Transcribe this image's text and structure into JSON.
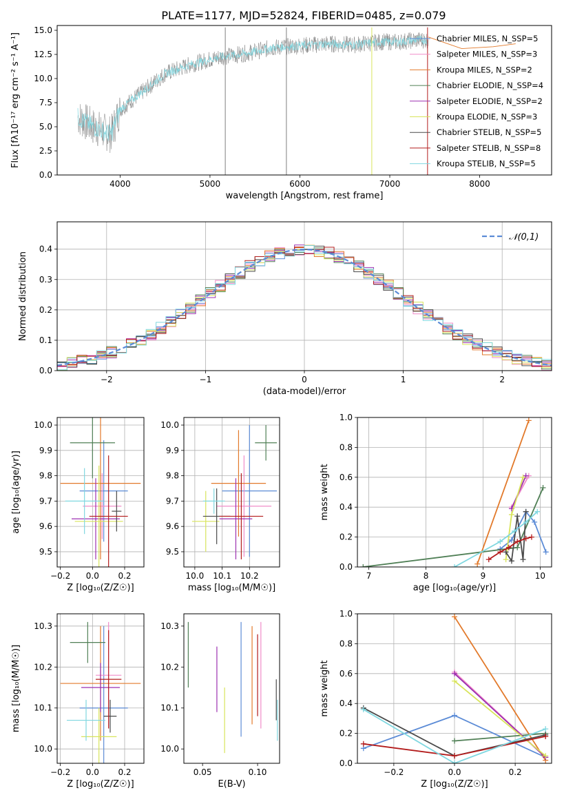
{
  "figure": {
    "title": "PLATE=1177, MJD=52824, FIBERID=0485, z=0.079"
  },
  "legend": {
    "entries": [
      {
        "label": "Chabrier MILES, N_SSP=5",
        "color": "#5b8bd6"
      },
      {
        "label": "Salpeter MILES, N_SSP=3",
        "color": "#f08bc8"
      },
      {
        "label": "Kroupa MILES, N_SSP=2",
        "color": "#e2792a"
      },
      {
        "label": "Chabrier ELODIE, N_SSP=4",
        "color": "#4f7f55"
      },
      {
        "label": "Salpeter ELODIE, N_SSP=2",
        "color": "#9c2fb0"
      },
      {
        "label": "Kroupa ELODIE, N_SSP=3",
        "color": "#d8e45a"
      },
      {
        "label": "Chabrier STELIB, N_SSP=5",
        "color": "#4a4a4a"
      },
      {
        "label": "Salpeter STELIB, N_SSP=8",
        "color": "#b31b1b"
      },
      {
        "label": "Kroupa STELIB, N_SSP=5",
        "color": "#7fd7e0"
      }
    ]
  },
  "chart_data": [
    {
      "id": "spectrum",
      "type": "line",
      "xlabel": "wavelength [Angstrom, rest frame]",
      "ylabel": "Flux [fλ10⁻¹⁷ erg cm⁻² s⁻¹ A⁻¹]",
      "xlim": [
        3300,
        8800
      ],
      "ylim": [
        0,
        15.5
      ],
      "xticks": [
        4000,
        5000,
        6000,
        7000,
        8000
      ],
      "yticks": [
        0.0,
        2.5,
        5.0,
        7.5,
        10.0,
        12.5,
        15.0
      ],
      "xtick_labels": [
        "4000",
        "5000",
        "6000",
        "7000",
        "8000"
      ],
      "ytick_labels": [
        "0.0",
        "2.5",
        "5.0",
        "7.5",
        "10.0",
        "12.5",
        "15.0"
      ],
      "data_series": {
        "name": "data",
        "color": "#7f7f7f",
        "x": [
          3530,
          3700,
          3900,
          4000,
          4300,
          4500,
          4800,
          5100,
          5400,
          5700,
          6000,
          6300,
          6600,
          6900,
          7100,
          7300,
          7430
        ],
        "y": [
          6.0,
          5.0,
          4.2,
          6.8,
          9.0,
          10.5,
          11.5,
          12.2,
          12.6,
          13.2,
          13.4,
          13.6,
          13.5,
          13.8,
          13.8,
          14.0,
          14.0
        ]
      },
      "model_series": {
        "name": "Kroupa STELIB",
        "color": "#7fd7e0",
        "x": [
          3530,
          3700,
          3900,
          4000,
          4300,
          4500,
          4800,
          5100,
          5400,
          5700,
          6000,
          6300,
          6600,
          6900,
          7100,
          7300,
          7430
        ],
        "y": [
          6.0,
          5.0,
          4.2,
          6.8,
          9.0,
          10.5,
          11.5,
          12.2,
          12.6,
          13.2,
          13.4,
          13.6,
          13.5,
          13.8,
          13.8,
          14.0,
          14.0
        ]
      },
      "tail_series": {
        "name": "Kroupa MILES",
        "color": "#e2792a",
        "x": [
          7430,
          7800,
          8150,
          8400
        ],
        "y": [
          14.3,
          13.1,
          13.3,
          13.6
        ]
      },
      "spikes": [
        {
          "x": 5170,
          "color": "#7f7f7f"
        },
        {
          "x": 5850,
          "color": "#7f7f7f"
        },
        {
          "x": 6800,
          "color": "#d8e45a"
        },
        {
          "x": 7420,
          "color": "#b31b1b"
        }
      ]
    },
    {
      "id": "residuals",
      "type": "line",
      "xlabel": "(data-model)/error",
      "ylabel": "Normed distribution",
      "xlim": [
        -2.5,
        2.5
      ],
      "ylim": [
        0,
        0.49
      ],
      "xticks": [
        -2,
        -1,
        0,
        1,
        2
      ],
      "yticks": [
        0.0,
        0.1,
        0.2,
        0.3,
        0.4
      ],
      "xtick_labels": [
        "−2",
        "−1",
        "0",
        "1",
        "2"
      ],
      "ytick_labels": [
        "0.0",
        "0.1",
        "0.2",
        "0.3",
        "0.4"
      ],
      "grid": true,
      "legend_label": "𝒩(0,1)",
      "legend_position": "upper right",
      "gaussian": {
        "mu": 0,
        "sigma": 1,
        "color": "#5b8bd6"
      },
      "hist": {
        "x_start": -2.5,
        "bin_width": 0.1,
        "n_bins": 50,
        "jitter_amplitude": 0.04
      }
    },
    {
      "id": "age_vs_Z",
      "type": "scatter",
      "xlabel": "Z [log₁₀(Z/Z☉)]",
      "ylabel": "age  [log₁₀(age/yr)]",
      "xlim": [
        -0.22,
        0.32
      ],
      "ylim": [
        9.44,
        10.03
      ],
      "xticks": [
        -0.2,
        0.0,
        0.2
      ],
      "yticks": [
        9.5,
        9.6,
        9.7,
        9.8,
        9.9,
        10.0
      ],
      "xtick_labels": [
        "−0.2",
        "0.0",
        "0.2"
      ],
      "ytick_labels": [
        "9.5",
        "9.6",
        "9.7",
        "9.8",
        "9.9",
        "10.0"
      ],
      "grid": true,
      "points": [
        {
          "x": 0.07,
          "y": 9.74,
          "xerr": 0.15,
          "yerr": 0.2,
          "color": "#5b8bd6"
        },
        {
          "x": 0.06,
          "y": 9.68,
          "xerr": 0.12,
          "yerr": 0.13,
          "color": "#f08bc8"
        },
        {
          "x": 0.05,
          "y": 9.77,
          "xerr": 0.25,
          "yerr": 0.3,
          "color": "#e2792a"
        },
        {
          "x": 0.0,
          "y": 9.93,
          "xerr": 0.14,
          "yerr": 0.14,
          "color": "#4f7f55"
        },
        {
          "x": 0.02,
          "y": 9.63,
          "xerr": 0.15,
          "yerr": 0.16,
          "color": "#9c2fb0"
        },
        {
          "x": 0.04,
          "y": 9.62,
          "xerr": 0.15,
          "yerr": 0.22,
          "color": "#d8e45a"
        },
        {
          "x": 0.15,
          "y": 9.66,
          "xerr": 0.03,
          "yerr": 0.08,
          "color": "#4a4a4a"
        },
        {
          "x": 0.1,
          "y": 9.64,
          "xerr": 0.12,
          "yerr": 0.24,
          "color": "#b31b1b"
        },
        {
          "x": -0.05,
          "y": 9.7,
          "xerr": 0.12,
          "yerr": 0.13,
          "color": "#7fd7e0"
        }
      ]
    },
    {
      "id": "age_vs_mass",
      "type": "scatter",
      "xlabel": "mass [log₁₀(M/M☉)]",
      "ylabel": "",
      "xlim": [
        9.96,
        10.31
      ],
      "ylim": [
        9.44,
        10.03
      ],
      "xticks": [
        10.0,
        10.1,
        10.2
      ],
      "yticks": [
        9.5,
        9.6,
        9.7,
        9.8,
        9.9,
        10.0
      ],
      "xtick_labels": [
        "10.0",
        "10.1",
        "10.2"
      ],
      "ytick_labels": [
        "9.5",
        "9.6",
        "9.7",
        "9.8",
        "9.9",
        "10.0"
      ],
      "grid": true,
      "points": [
        {
          "x": 10.2,
          "y": 9.74,
          "xerr": 0.1,
          "yerr": 0.26,
          "color": "#5b8bd6"
        },
        {
          "x": 10.18,
          "y": 9.68,
          "xerr": 0.1,
          "yerr": 0.2,
          "color": "#f08bc8"
        },
        {
          "x": 10.16,
          "y": 9.77,
          "xerr": 0.1,
          "yerr": 0.21,
          "color": "#e2792a"
        },
        {
          "x": 10.26,
          "y": 9.93,
          "xerr": 0.04,
          "yerr": 0.07,
          "color": "#4f7f55"
        },
        {
          "x": 10.15,
          "y": 9.63,
          "xerr": 0.06,
          "yerr": 0.16,
          "color": "#9c2fb0"
        },
        {
          "x": 10.04,
          "y": 9.62,
          "xerr": 0.05,
          "yerr": 0.12,
          "color": "#d8e45a"
        },
        {
          "x": 10.08,
          "y": 9.64,
          "xerr": 0.05,
          "yerr": 0.11,
          "color": "#4a4a4a"
        },
        {
          "x": 10.17,
          "y": 9.64,
          "xerr": 0.08,
          "yerr": 0.17,
          "color": "#b31b1b"
        },
        {
          "x": 10.07,
          "y": 9.7,
          "xerr": 0.04,
          "yerr": 0.05,
          "color": "#7fd7e0"
        }
      ]
    },
    {
      "id": "weight_vs_age",
      "type": "line",
      "xlabel": "age  [log₁₀(age/yr)]",
      "ylabel": "mass weight",
      "xlim": [
        6.8,
        10.2
      ],
      "ylim": [
        0,
        1.0
      ],
      "xticks": [
        7,
        8,
        9,
        10
      ],
      "yticks": [
        0.0,
        0.2,
        0.4,
        0.6,
        0.8,
        1.0
      ],
      "xtick_labels": [
        "7",
        "8",
        "9",
        "10"
      ],
      "ytick_labels": [
        "0.0",
        "0.2",
        "0.4",
        "0.6",
        "0.8",
        "1.0"
      ],
      "grid": true,
      "series": [
        {
          "color": "#5b8bd6",
          "x": [
            9.3,
            9.5,
            9.75,
            9.9,
            10.1
          ],
          "y": [
            0.12,
            0.18,
            0.37,
            0.3,
            0.1
          ]
        },
        {
          "color": "#f08bc8",
          "x": [
            9.5,
            9.8
          ],
          "y": [
            0.4,
            0.61
          ]
        },
        {
          "color": "#e2792a",
          "x": [
            8.9,
            9.8
          ],
          "y": [
            0.02,
            0.98
          ]
        },
        {
          "color": "#4f7f55",
          "x": [
            6.9,
            9.6,
            10.05
          ],
          "y": [
            0.0,
            0.13,
            0.53
          ]
        },
        {
          "color": "#9c2fb0",
          "x": [
            9.5,
            9.75
          ],
          "y": [
            0.39,
            0.61
          ]
        },
        {
          "color": "#d8e45a",
          "x": [
            9.4,
            9.5,
            9.7
          ],
          "y": [
            0.05,
            0.35,
            0.6
          ]
        },
        {
          "color": "#4a4a4a",
          "x": [
            9.4,
            9.5,
            9.6,
            9.7,
            9.75
          ],
          "y": [
            0.1,
            0.04,
            0.34,
            0.05,
            0.37
          ]
        },
        {
          "color": "#b31b1b",
          "x": [
            9.1,
            9.3,
            9.45,
            9.6,
            9.75,
            9.85
          ],
          "y": [
            0.05,
            0.1,
            0.13,
            0.17,
            0.19,
            0.2
          ]
        },
        {
          "color": "#7fd7e0",
          "x": [
            8.5,
            9.3,
            9.55,
            9.75,
            9.95
          ],
          "y": [
            0.0,
            0.17,
            0.24,
            0.3,
            0.37
          ]
        }
      ]
    },
    {
      "id": "mass_vs_Z",
      "type": "scatter",
      "xlabel": "Z [log₁₀(Z/Z☉)]",
      "ylabel": "mass [log₁₀(M/M☉)]",
      "xlim": [
        -0.22,
        0.32
      ],
      "ylim": [
        9.965,
        10.33
      ],
      "xticks": [
        -0.2,
        0.0,
        0.2
      ],
      "yticks": [
        10.0,
        10.1,
        10.2,
        10.3
      ],
      "xtick_labels": [
        "−0.2",
        "0.0",
        "0.2"
      ],
      "ytick_labels": [
        "10.0",
        "10.1",
        "10.2",
        "10.3"
      ],
      "grid": true,
      "points": [
        {
          "x": 0.07,
          "y": 10.1,
          "xerr": 0.15,
          "yerr": 0.2,
          "color": "#5b8bd6"
        },
        {
          "x": 0.1,
          "y": 10.18,
          "xerr": 0.08,
          "yerr": 0.13,
          "color": "#f08bc8"
        },
        {
          "x": 0.05,
          "y": 10.16,
          "xerr": 0.25,
          "yerr": 0.14,
          "color": "#e2792a"
        },
        {
          "x": -0.03,
          "y": 10.26,
          "xerr": 0.11,
          "yerr": 0.05,
          "color": "#4f7f55"
        },
        {
          "x": 0.05,
          "y": 10.15,
          "xerr": 0.12,
          "yerr": 0.06,
          "color": "#9c2fb0"
        },
        {
          "x": 0.04,
          "y": 10.03,
          "xerr": 0.11,
          "yerr": 0.07,
          "color": "#d8e45a"
        },
        {
          "x": 0.11,
          "y": 10.08,
          "xerr": 0.04,
          "yerr": 0.04,
          "color": "#4a4a4a"
        },
        {
          "x": 0.1,
          "y": 10.17,
          "xerr": 0.08,
          "yerr": 0.12,
          "color": "#b31b1b"
        },
        {
          "x": -0.04,
          "y": 10.07,
          "xerr": 0.12,
          "yerr": 0.05,
          "color": "#7fd7e0"
        }
      ]
    },
    {
      "id": "mass_vs_ebv",
      "type": "scatter",
      "xlabel": "E(B-V)",
      "ylabel": "",
      "xlim": [
        0.033,
        0.12
      ],
      "ylim": [
        9.965,
        10.33
      ],
      "xticks": [
        0.05,
        0.1
      ],
      "yticks": [
        10.0,
        10.1,
        10.2,
        10.3
      ],
      "xtick_labels": [
        "0.05",
        "0.10"
      ],
      "ytick_labels": [
        "10.0",
        "10.1",
        "10.2",
        "10.3"
      ],
      "points": [
        {
          "x": 0.037,
          "y": 10.23,
          "yerr": 0.08,
          "color": "#4f7f55"
        },
        {
          "x": 0.063,
          "y": 10.17,
          "yerr": 0.08,
          "color": "#9c2fb0"
        },
        {
          "x": 0.07,
          "y": 10.07,
          "yerr": 0.08,
          "color": "#d8e45a"
        },
        {
          "x": 0.085,
          "y": 10.17,
          "yerr": 0.14,
          "color": "#5b8bd6"
        },
        {
          "x": 0.095,
          "y": 10.18,
          "yerr": 0.12,
          "color": "#e2792a"
        },
        {
          "x": 0.1,
          "y": 10.18,
          "yerr": 0.1,
          "color": "#b31b1b"
        },
        {
          "x": 0.103,
          "y": 10.18,
          "yerr": 0.13,
          "color": "#f08bc8"
        },
        {
          "x": 0.117,
          "y": 10.12,
          "yerr": 0.05,
          "color": "#4a4a4a"
        },
        {
          "x": 0.118,
          "y": 10.07,
          "yerr": 0.05,
          "color": "#7fd7e0"
        }
      ]
    },
    {
      "id": "weight_vs_Z",
      "type": "line",
      "xlabel": "Z [log₁₀(Z/Z☉)]",
      "ylabel": "mass weight",
      "xlim": [
        -0.32,
        0.32
      ],
      "ylim": [
        0,
        1.0
      ],
      "xticks": [
        -0.2,
        0.0,
        0.2
      ],
      "yticks": [
        0.0,
        0.2,
        0.4,
        0.6,
        0.8,
        1.0
      ],
      "xtick_labels": [
        "−0.2",
        "0.0",
        "0.2"
      ],
      "ytick_labels": [
        "0.0",
        "0.2",
        "0.4",
        "0.6",
        "0.8",
        "1.0"
      ],
      "grid": true,
      "series": [
        {
          "color": "#5b8bd6",
          "x": [
            -0.3,
            0.0,
            0.3
          ],
          "y": [
            0.1,
            0.32,
            0.04
          ]
        },
        {
          "color": "#f08bc8",
          "x": [
            0.0,
            0.3
          ],
          "y": [
            0.61,
            0.04
          ]
        },
        {
          "color": "#e2792a",
          "x": [
            0.0,
            0.3
          ],
          "y": [
            0.98,
            0.02
          ]
        },
        {
          "color": "#4f7f55",
          "x": [
            0.0,
            0.3
          ],
          "y": [
            0.15,
            0.2
          ]
        },
        {
          "color": "#9c2fb0",
          "x": [
            0.0,
            0.3
          ],
          "y": [
            0.6,
            0.04
          ]
        },
        {
          "color": "#d8e45a",
          "x": [
            0.0,
            0.3
          ],
          "y": [
            0.55,
            0.05
          ]
        },
        {
          "color": "#4a4a4a",
          "x": [
            -0.3,
            0.0,
            0.3
          ],
          "y": [
            0.37,
            0.05,
            0.19
          ]
        },
        {
          "color": "#b31b1b",
          "x": [
            -0.3,
            0.0,
            0.3
          ],
          "y": [
            0.13,
            0.05,
            0.18
          ]
        },
        {
          "color": "#7fd7e0",
          "x": [
            -0.3,
            0.0,
            0.3
          ],
          "y": [
            0.36,
            0.0,
            0.23
          ]
        }
      ]
    }
  ]
}
